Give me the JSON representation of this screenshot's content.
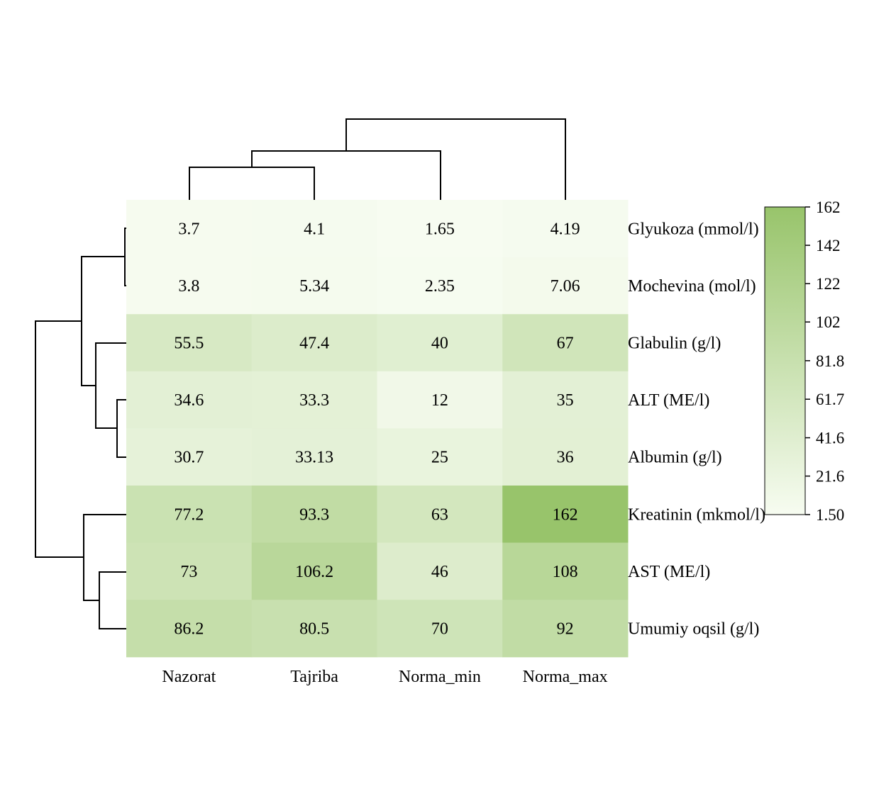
{
  "chart_data": {
    "type": "heatmap",
    "title": "",
    "columns": [
      "Nazorat",
      "Tajriba",
      "Norma_min",
      "Norma_max"
    ],
    "rows": [
      "Glyukoza (mmol/l)",
      "Mochevina (mol/l)",
      "Glabulin (g/l)",
      "ALT (ME/l)",
      "Albumin (g/l)",
      "Kreatinin (mkmol/l)",
      "AST (ME/l)",
      "Umumiy oqsil (g/l)"
    ],
    "values": [
      [
        3.7,
        4.1,
        1.65,
        4.19
      ],
      [
        3.8,
        5.34,
        2.35,
        7.06
      ],
      [
        55.5,
        47.4,
        40,
        67
      ],
      [
        34.6,
        33.3,
        12,
        35
      ],
      [
        30.7,
        33.13,
        25,
        36
      ],
      [
        77.2,
        93.3,
        63,
        162
      ],
      [
        73,
        106.2,
        46,
        108
      ],
      [
        86.2,
        80.5,
        70,
        92
      ]
    ],
    "labels": [
      [
        "3.7",
        "4.1",
        "1.65",
        "4.19"
      ],
      [
        "3.8",
        "5.34",
        "2.35",
        "7.06"
      ],
      [
        "55.5",
        "47.4",
        "40",
        "67"
      ],
      [
        "34.6",
        "33.3",
        "12",
        "35"
      ],
      [
        "30.7",
        "33.13",
        "25",
        "36"
      ],
      [
        "77.2",
        "93.3",
        "63",
        "162"
      ],
      [
        "73",
        "106.2",
        "46",
        "108"
      ],
      [
        "86.2",
        "80.5",
        "70",
        "92"
      ]
    ],
    "color_range": [
      1.5,
      162
    ],
    "colors": {
      "low": "#f7fcf1",
      "high": "#98c46b"
    },
    "legend": {
      "position": "right",
      "ticks": [
        "162",
        "142",
        "122",
        "102",
        "81.8",
        "61.7",
        "41.6",
        "21.6",
        "1.50"
      ],
      "tick_values": [
        162,
        142,
        122,
        102,
        81.8,
        61.7,
        41.6,
        21.6,
        1.5
      ]
    },
    "column_dendrogram": "((Nazorat,Tajriba),Norma_min),Norma_max",
    "row_dendrogram": "((Glyukoza,Mochevina),(Glabulin,(ALT,Albumin))),(Kreatinin,(AST,Umumiy oqsil))"
  }
}
